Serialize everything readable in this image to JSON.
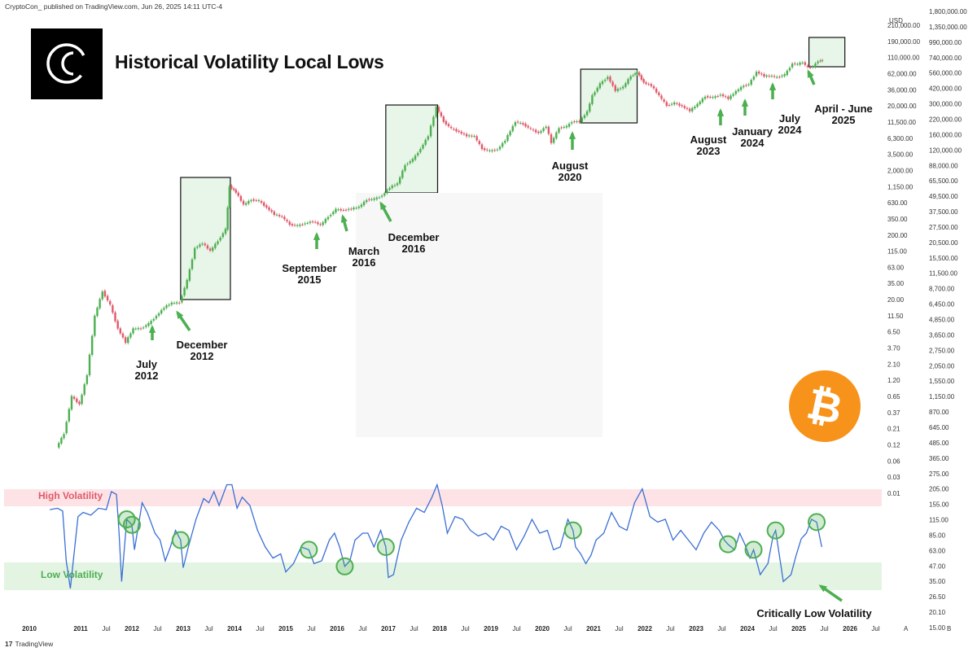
{
  "header": {
    "meta": "CryptoCon_ published on TradingView.com, Jun 26, 2025 14:11 UTC-4"
  },
  "title": "Historical Volatility Local Lows",
  "currency": "USD",
  "footer": {
    "brand": "TradingView",
    "brand_glyph": "17"
  },
  "colors": {
    "up": "#4caf50",
    "down": "#e05a6a",
    "volatility_line": "#3b6fd4",
    "highlight_box_fill": "#e8f5e9",
    "high_band": "#fde3e6",
    "low_band": "#e3f4e3",
    "bitcoin_orange": "#f7931a"
  },
  "chart_data": [
    {
      "type": "line",
      "name": "price",
      "scale": "log",
      "x": [
        2010.55,
        2010.7,
        2010.85,
        2011.0,
        2011.15,
        2011.3,
        2011.45,
        2011.6,
        2011.75,
        2011.9,
        2012.05,
        2012.2,
        2012.35,
        2012.5,
        2012.65,
        2012.8,
        2012.95,
        2013.1,
        2013.25,
        2013.4,
        2013.55,
        2013.7,
        2013.85,
        2013.92,
        2014.05,
        2014.2,
        2014.35,
        2014.5,
        2014.65,
        2014.8,
        2014.95,
        2015.1,
        2015.25,
        2015.4,
        2015.55,
        2015.7,
        2015.85,
        2016.0,
        2016.15,
        2016.3,
        2016.45,
        2016.6,
        2016.75,
        2016.9,
        2017.05,
        2017.2,
        2017.35,
        2017.5,
        2017.65,
        2017.8,
        2017.96,
        2018.1,
        2018.25,
        2018.4,
        2018.55,
        2018.7,
        2018.85,
        2019.0,
        2019.15,
        2019.3,
        2019.5,
        2019.65,
        2019.8,
        2019.95,
        2020.1,
        2020.2,
        2020.35,
        2020.5,
        2020.6,
        2020.75,
        2020.9,
        2021.0,
        2021.15,
        2021.3,
        2021.45,
        2021.6,
        2021.75,
        2021.87,
        2022.0,
        2022.15,
        2022.3,
        2022.45,
        2022.6,
        2022.75,
        2022.9,
        2023.05,
        2023.2,
        2023.35,
        2023.5,
        2023.65,
        2023.8,
        2023.95,
        2024.05,
        2024.2,
        2024.35,
        2024.5,
        2024.6,
        2024.75,
        2024.9,
        2025.0,
        2025.1,
        2025.2,
        2025.3,
        2025.4,
        2025.48
      ],
      "values": [
        0.06,
        0.1,
        0.4,
        0.3,
        0.9,
        8,
        20,
        12,
        5,
        3,
        5,
        5,
        6,
        8,
        11,
        13,
        13,
        30,
        100,
        120,
        90,
        130,
        200,
        1000,
        800,
        500,
        600,
        580,
        450,
        350,
        320,
        240,
        230,
        250,
        270,
        235,
        320,
        420,
        410,
        430,
        460,
        600,
        620,
        700,
        950,
        1100,
        2200,
        2700,
        4000,
        6500,
        19000,
        11000,
        8500,
        7500,
        6500,
        6400,
        4000,
        3700,
        3900,
        5500,
        11000,
        10000,
        8300,
        7200,
        9300,
        5000,
        8700,
        9200,
        11000,
        11000,
        16000,
        29000,
        45000,
        58000,
        35000,
        40000,
        60000,
        69000,
        47000,
        42000,
        29000,
        20000,
        22000,
        19500,
        16500,
        21000,
        28000,
        27000,
        30000,
        26000,
        34000,
        42000,
        44000,
        70000,
        60000,
        60000,
        57000,
        63000,
        95000,
        93000,
        100000,
        82000,
        85000,
        105000,
        107000
      ]
    },
    {
      "type": "line",
      "name": "volatility",
      "x": [
        2010.4,
        2010.55,
        2010.65,
        2010.72,
        2010.8,
        2010.95,
        2011.05,
        2011.2,
        2011.35,
        2011.5,
        2011.6,
        2011.7,
        2011.75,
        2011.8,
        2011.9,
        2012.0,
        2012.05,
        2012.2,
        2012.3,
        2012.45,
        2012.55,
        2012.65,
        2012.75,
        2012.85,
        2012.95,
        2013.0,
        2013.1,
        2013.25,
        2013.4,
        2013.5,
        2013.6,
        2013.7,
        2013.85,
        2013.95,
        2014.05,
        2014.15,
        2014.3,
        2014.45,
        2014.6,
        2014.75,
        2014.9,
        2015.0,
        2015.15,
        2015.3,
        2015.45,
        2015.55,
        2015.7,
        2015.85,
        2015.95,
        2016.05,
        2016.15,
        2016.25,
        2016.35,
        2016.5,
        2016.6,
        2016.72,
        2016.85,
        2016.95,
        2017.0,
        2017.1,
        2017.25,
        2017.4,
        2017.55,
        2017.7,
        2017.85,
        2017.95,
        2018.05,
        2018.15,
        2018.3,
        2018.45,
        2018.6,
        2018.75,
        2018.9,
        2019.05,
        2019.2,
        2019.35,
        2019.5,
        2019.65,
        2019.8,
        2019.95,
        2020.1,
        2020.22,
        2020.35,
        2020.5,
        2020.6,
        2020.65,
        2020.75,
        2020.85,
        2020.95,
        2021.05,
        2021.2,
        2021.35,
        2021.5,
        2021.65,
        2021.8,
        2021.95,
        2022.1,
        2022.25,
        2022.4,
        2022.55,
        2022.7,
        2022.85,
        2023.0,
        2023.15,
        2023.3,
        2023.45,
        2023.55,
        2023.62,
        2023.75,
        2023.85,
        2023.95,
        2024.05,
        2024.12,
        2024.25,
        2024.4,
        2024.5,
        2024.55,
        2024.7,
        2024.85,
        2024.95,
        2025.05,
        2025.15,
        2025.25,
        2025.35,
        2025.45
      ],
      "values": [
        77,
        78,
        76,
        40,
        20,
        72,
        75,
        73,
        78,
        77,
        90,
        88,
        60,
        25,
        70,
        66,
        48,
        82,
        75,
        60,
        55,
        40,
        50,
        62,
        55,
        35,
        50,
        70,
        85,
        82,
        90,
        80,
        95,
        95,
        78,
        86,
        80,
        62,
        50,
        42,
        45,
        32,
        38,
        50,
        48,
        38,
        40,
        55,
        60,
        50,
        36,
        40,
        55,
        60,
        60,
        50,
        62,
        50,
        28,
        30,
        55,
        68,
        78,
        75,
        86,
        95,
        80,
        60,
        72,
        70,
        62,
        58,
        60,
        55,
        65,
        62,
        48,
        58,
        70,
        60,
        62,
        48,
        50,
        70,
        62,
        50,
        45,
        38,
        44,
        55,
        60,
        75,
        65,
        62,
        82,
        92,
        72,
        68,
        70,
        55,
        62,
        55,
        48,
        60,
        68,
        62,
        55,
        52,
        48,
        60,
        52,
        42,
        48,
        30,
        38,
        58,
        62,
        25,
        30,
        44,
        56,
        60,
        70,
        68,
        50
      ]
    }
  ],
  "axes": {
    "x_ticks": [
      {
        "label": "2010",
        "year": 2010.0,
        "bold": true
      },
      {
        "label": "2011",
        "year": 2011.0,
        "bold": true
      },
      {
        "label": "Jul",
        "year": 2011.5
      },
      {
        "label": "2012",
        "year": 2012.0,
        "bold": true
      },
      {
        "label": "Jul",
        "year": 2012.5
      },
      {
        "label": "2013",
        "year": 2013.0,
        "bold": true
      },
      {
        "label": "Jul",
        "year": 2013.5
      },
      {
        "label": "2014",
        "year": 2014.0,
        "bold": true
      },
      {
        "label": "Jul",
        "year": 2014.5
      },
      {
        "label": "2015",
        "year": 2015.0,
        "bold": true
      },
      {
        "label": "Jul",
        "year": 2015.5
      },
      {
        "label": "2016",
        "year": 2016.0,
        "bold": true
      },
      {
        "label": "Jul",
        "year": 2016.5
      },
      {
        "label": "2017",
        "year": 2017.0,
        "bold": true
      },
      {
        "label": "Jul",
        "year": 2017.5
      },
      {
        "label": "2018",
        "year": 2018.0,
        "bold": true
      },
      {
        "label": "Jul",
        "year": 2018.5
      },
      {
        "label": "2019",
        "year": 2019.0,
        "bold": true
      },
      {
        "label": "Jul",
        "year": 2019.5
      },
      {
        "label": "2020",
        "year": 2020.0,
        "bold": true
      },
      {
        "label": "Jul",
        "year": 2020.5
      },
      {
        "label": "2021",
        "year": 2021.0,
        "bold": true
      },
      {
        "label": "Jul",
        "year": 2021.5
      },
      {
        "label": "2022",
        "year": 2022.0,
        "bold": true
      },
      {
        "label": "Jul",
        "year": 2022.5
      },
      {
        "label": "2023",
        "year": 2023.0,
        "bold": true
      },
      {
        "label": "Jul",
        "year": 2023.5
      },
      {
        "label": "2024",
        "year": 2024.0,
        "bold": true
      },
      {
        "label": "Jul",
        "year": 2024.5
      },
      {
        "label": "2025",
        "year": 2025.0,
        "bold": true
      },
      {
        "label": "Jul",
        "year": 2025.5
      },
      {
        "label": "2026",
        "year": 2026.0,
        "bold": true
      },
      {
        "label": "Jul",
        "year": 2026.5
      }
    ],
    "left_ticks": [
      "210,000.00",
      "190,000.00",
      "110,000.00",
      "62,000.00",
      "36,000.00",
      "20,000.00",
      "11,500.00",
      "6,300.00",
      "3,500.00",
      "2,000.00",
      "1,150.00",
      "630.00",
      "350.00",
      "200.00",
      "115.00",
      "63.00",
      "35.00",
      "20.00",
      "11.50",
      "6.50",
      "3.70",
      "2.10",
      "1.20",
      "0.65",
      "0.37",
      "0.21",
      "0.12",
      "0.06",
      "0.03",
      "0.01"
    ],
    "right_ticks": [
      "1,800,000.00",
      "1,350,000.00",
      "990,000.00",
      "740,000.00",
      "560,000.00",
      "420,000.00",
      "300,000.00",
      "220,000.00",
      "160,000.00",
      "120,000.00",
      "88,000.00",
      "65,500.00",
      "49,500.00",
      "37,500.00",
      "27,500.00",
      "20,500.00",
      "15,500.00",
      "11,500.00",
      "8,700.00",
      "6,450.00",
      "4,850.00",
      "3,650.00",
      "2,750.00",
      "2,050.00",
      "1,550.00",
      "1,150.00",
      "870.00",
      "645.00",
      "485.00",
      "365.00",
      "275.00",
      "205.00",
      "155.00",
      "115.00",
      "85.00",
      "63.00",
      "47.00",
      "35.00",
      "26.50",
      "20.10",
      "15.00"
    ],
    "corner_labels": [
      "A",
      "B"
    ]
  },
  "bands": {
    "high": "High Volatility",
    "low": "Low Volatility"
  },
  "annotations": [
    {
      "lines": [
        "July",
        "2012"
      ]
    },
    {
      "lines": [
        "December",
        "2012"
      ]
    },
    {
      "lines": [
        "September",
        "2015"
      ]
    },
    {
      "lines": [
        "March",
        "2016"
      ]
    },
    {
      "lines": [
        "December",
        "2016"
      ]
    },
    {
      "lines": [
        "August",
        "2020"
      ]
    },
    {
      "lines": [
        "August",
        "2023"
      ]
    },
    {
      "lines": [
        "January",
        "2024"
      ]
    },
    {
      "lines": [
        "July",
        "2024"
      ]
    },
    {
      "lines": [
        "April - June",
        "2025"
      ]
    },
    {
      "lines": [
        "Critically Low Volatility"
      ]
    }
  ],
  "highlight_boxes": [
    {
      "from": 2012.95,
      "to": 2013.92
    },
    {
      "from": 2016.95,
      "to": 2017.96
    },
    {
      "from": 2020.75,
      "to": 2021.85
    },
    {
      "from": 2025.2,
      "to": 2025.9
    }
  ],
  "volatility_lows": [
    2011.9,
    2012.0,
    2012.95,
    2015.5,
    2016.2,
    2016.95,
    2020.6,
    2023.6,
    2024.1,
    2024.6,
    2025.35
  ]
}
